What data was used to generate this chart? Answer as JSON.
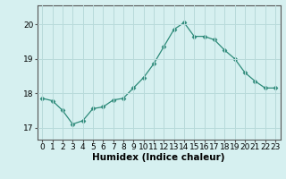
{
  "x": [
    0,
    1,
    2,
    3,
    4,
    5,
    6,
    7,
    8,
    9,
    10,
    11,
    12,
    13,
    14,
    15,
    16,
    17,
    18,
    19,
    20,
    21,
    22,
    23
  ],
  "y": [
    17.85,
    17.78,
    17.5,
    17.1,
    17.2,
    17.55,
    17.6,
    17.8,
    17.85,
    18.15,
    18.45,
    18.85,
    19.35,
    19.85,
    20.05,
    19.65,
    19.65,
    19.55,
    19.25,
    19.0,
    18.6,
    18.35,
    18.15,
    18.15
  ],
  "line_color": "#2e8b7a",
  "marker": "D",
  "marker_size": 2.5,
  "bg_color": "#d6f0f0",
  "grid_color": "#b8dada",
  "xlabel": "Humidex (Indice chaleur)",
  "ylim": [
    16.65,
    20.55
  ],
  "yticks": [
    17,
    18,
    19,
    20
  ],
  "xlim": [
    -0.5,
    23.5
  ],
  "xticks": [
    0,
    1,
    2,
    3,
    4,
    5,
    6,
    7,
    8,
    9,
    10,
    11,
    12,
    13,
    14,
    15,
    16,
    17,
    18,
    19,
    20,
    21,
    22,
    23
  ],
  "xlabel_fontsize": 7.5,
  "tick_fontsize": 6.5
}
